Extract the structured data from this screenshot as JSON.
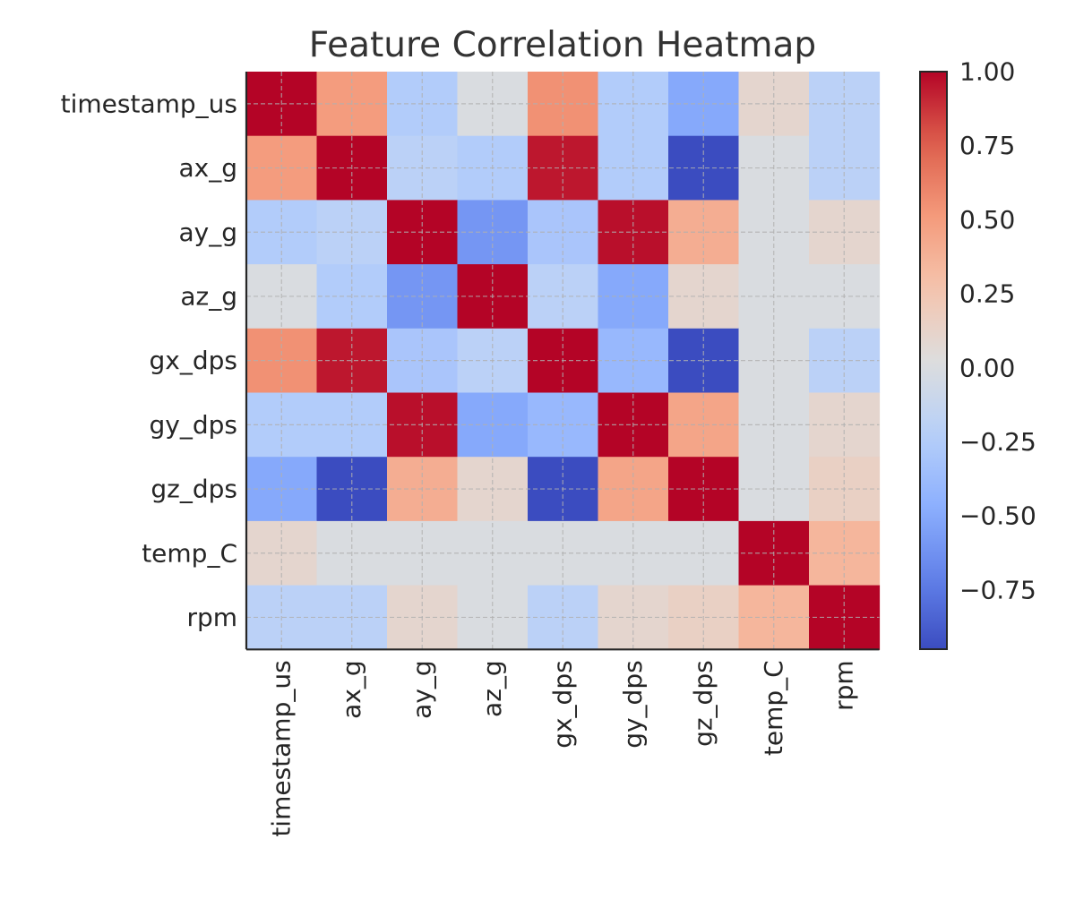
{
  "chart_data": {
    "type": "heatmap",
    "title": "Feature Correlation Heatmap",
    "row_labels": [
      "timestamp_us",
      "ax_g",
      "ay_g",
      "az_g",
      "gx_dps",
      "gy_dps",
      "gz_dps",
      "temp_C",
      "rpm"
    ],
    "col_labels": [
      "timestamp_us",
      "ax_g",
      "ay_g",
      "az_g",
      "gx_dps",
      "gy_dps",
      "gz_dps",
      "temp_C",
      "rpm"
    ],
    "matrix": [
      [
        1.0,
        0.5,
        -0.25,
        0.0,
        0.55,
        -0.25,
        -0.5,
        0.1,
        -0.2
      ],
      [
        0.5,
        1.0,
        -0.2,
        -0.25,
        0.95,
        -0.25,
        -0.95,
        0.0,
        -0.2
      ],
      [
        -0.25,
        -0.2,
        1.0,
        -0.6,
        -0.3,
        0.97,
        0.4,
        0.0,
        0.1
      ],
      [
        0.0,
        -0.25,
        -0.6,
        1.0,
        -0.2,
        -0.5,
        0.1,
        0.0,
        0.0
      ],
      [
        0.55,
        0.95,
        -0.3,
        -0.2,
        1.0,
        -0.4,
        -0.95,
        0.0,
        -0.2
      ],
      [
        -0.25,
        -0.25,
        0.97,
        -0.5,
        -0.4,
        1.0,
        0.45,
        0.0,
        0.1
      ],
      [
        -0.5,
        -0.95,
        0.4,
        0.1,
        -0.95,
        0.45,
        1.0,
        0.0,
        0.15
      ],
      [
        0.1,
        0.0,
        0.0,
        0.0,
        0.0,
        0.0,
        0.0,
        1.0,
        0.35
      ],
      [
        -0.2,
        -0.2,
        0.1,
        0.0,
        -0.2,
        0.1,
        0.15,
        0.35,
        1.0
      ]
    ],
    "colormap": "coolwarm",
    "color_range": [
      -0.95,
      1.0
    ],
    "colorbar_ticks": [
      1.0,
      0.75,
      0.5,
      0.25,
      0.0,
      -0.25,
      -0.5,
      -0.75
    ],
    "colorbar_tick_labels": [
      "1.00",
      "0.75",
      "0.50",
      "0.25",
      "0.00",
      "−0.25",
      "−0.50",
      "−0.75"
    ],
    "grid": true,
    "x_tick_rotation": "vertical"
  }
}
